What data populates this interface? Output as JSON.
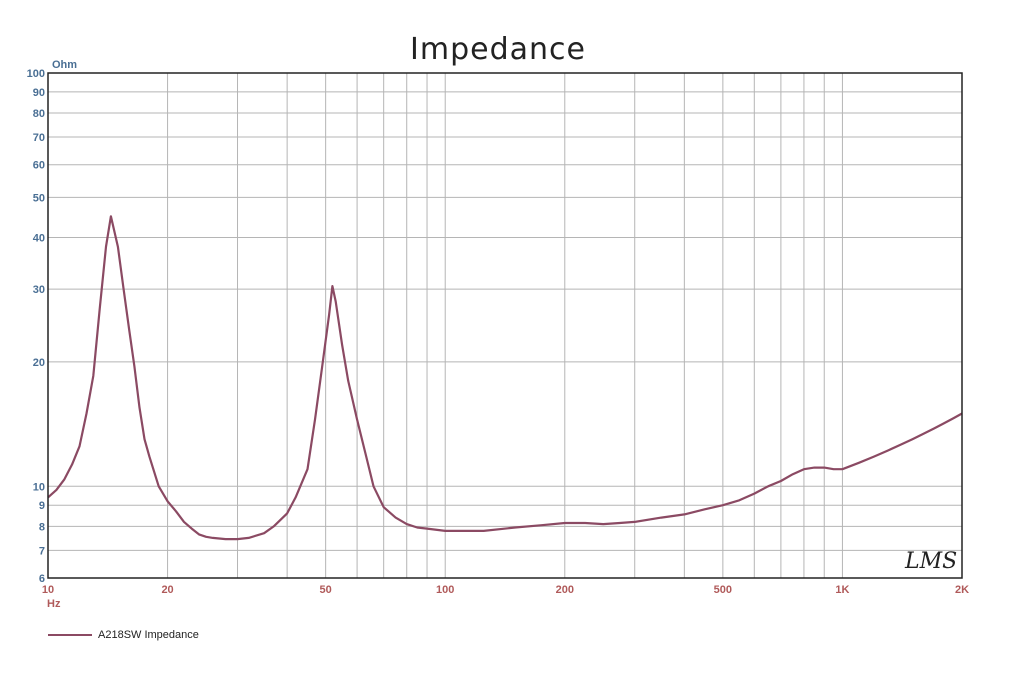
{
  "chart_data": {
    "type": "line",
    "title": "Impedance",
    "ylabel": "Ohm",
    "xlabel": "Hz",
    "x_scale": "log",
    "y_scale": "log",
    "xlim": [
      10,
      2000
    ],
    "ylim": [
      6,
      100
    ],
    "grid": true,
    "x_ticks": [
      {
        "value": 10,
        "label": "10"
      },
      {
        "value": 20,
        "label": "20"
      },
      {
        "value": 50,
        "label": "50"
      },
      {
        "value": 100,
        "label": "100"
      },
      {
        "value": 200,
        "label": "200"
      },
      {
        "value": 500,
        "label": "500"
      },
      {
        "value": 1000,
        "label": "1K"
      },
      {
        "value": 2000,
        "label": "2K"
      }
    ],
    "y_ticks": [
      {
        "value": 6,
        "label": "6"
      },
      {
        "value": 7,
        "label": "7"
      },
      {
        "value": 8,
        "label": "8"
      },
      {
        "value": 9,
        "label": "9"
      },
      {
        "value": 10,
        "label": "10"
      },
      {
        "value": 20,
        "label": "20"
      },
      {
        "value": 30,
        "label": "30"
      },
      {
        "value": 40,
        "label": "40"
      },
      {
        "value": 50,
        "label": "50"
      },
      {
        "value": 60,
        "label": "60"
      },
      {
        "value": 70,
        "label": "70"
      },
      {
        "value": 80,
        "label": "80"
      },
      {
        "value": 90,
        "label": "90"
      },
      {
        "value": 100,
        "label": "100"
      }
    ],
    "legend_position": "bottom-left",
    "watermark": "LMS",
    "series": [
      {
        "name": "A218SW Impedance",
        "color": "#8b4a63",
        "points": [
          [
            10,
            9.4
          ],
          [
            10.5,
            9.8
          ],
          [
            11,
            10.4
          ],
          [
            11.5,
            11.3
          ],
          [
            12,
            12.5
          ],
          [
            12.5,
            15.0
          ],
          [
            13,
            18.5
          ],
          [
            13.5,
            27.0
          ],
          [
            14,
            38.0
          ],
          [
            14.4,
            45.0
          ],
          [
            15,
            38.0
          ],
          [
            15.5,
            30.0
          ],
          [
            16,
            24.0
          ],
          [
            16.5,
            19.5
          ],
          [
            17,
            15.5
          ],
          [
            17.5,
            13.0
          ],
          [
            18,
            11.8
          ],
          [
            19,
            10.0
          ],
          [
            20,
            9.2
          ],
          [
            21,
            8.7
          ],
          [
            22,
            8.2
          ],
          [
            23,
            7.9
          ],
          [
            24,
            7.65
          ],
          [
            25,
            7.55
          ],
          [
            26,
            7.5
          ],
          [
            28,
            7.45
          ],
          [
            30,
            7.45
          ],
          [
            32,
            7.5
          ],
          [
            35,
            7.7
          ],
          [
            37,
            8.0
          ],
          [
            40,
            8.6
          ],
          [
            42,
            9.4
          ],
          [
            45,
            11.0
          ],
          [
            47,
            14.5
          ],
          [
            49,
            19.5
          ],
          [
            51,
            26.0
          ],
          [
            52,
            30.5
          ],
          [
            53,
            28.0
          ],
          [
            55,
            22.0
          ],
          [
            57,
            18.0
          ],
          [
            60,
            14.5
          ],
          [
            63,
            12.0
          ],
          [
            66,
            10.0
          ],
          [
            70,
            8.9
          ],
          [
            75,
            8.4
          ],
          [
            80,
            8.1
          ],
          [
            85,
            7.95
          ],
          [
            90,
            7.9
          ],
          [
            100,
            7.8
          ],
          [
            110,
            7.8
          ],
          [
            125,
            7.8
          ],
          [
            150,
            7.95
          ],
          [
            175,
            8.05
          ],
          [
            200,
            8.15
          ],
          [
            225,
            8.15
          ],
          [
            250,
            8.1
          ],
          [
            275,
            8.15
          ],
          [
            300,
            8.2
          ],
          [
            350,
            8.4
          ],
          [
            400,
            8.55
          ],
          [
            450,
            8.8
          ],
          [
            500,
            9.0
          ],
          [
            550,
            9.25
          ],
          [
            600,
            9.6
          ],
          [
            650,
            10.0
          ],
          [
            700,
            10.3
          ],
          [
            750,
            10.7
          ],
          [
            800,
            11.0
          ],
          [
            850,
            11.1
          ],
          [
            900,
            11.1
          ],
          [
            950,
            11.0
          ],
          [
            1000,
            11.0
          ],
          [
            1100,
            11.4
          ],
          [
            1200,
            11.8
          ],
          [
            1300,
            12.2
          ],
          [
            1400,
            12.6
          ],
          [
            1500,
            13.0
          ],
          [
            1600,
            13.4
          ],
          [
            1700,
            13.8
          ],
          [
            1800,
            14.2
          ],
          [
            1900,
            14.6
          ],
          [
            2000,
            15.0
          ]
        ]
      }
    ]
  },
  "colors": {
    "grid": "#b5b5b5",
    "frame": "#222222",
    "y_tick_text": "#4a6f94",
    "x_tick_text": "#b05a5a"
  }
}
